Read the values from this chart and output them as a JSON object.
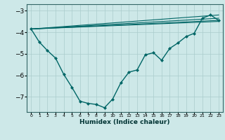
{
  "xlabel": "Humidex (Indice chaleur)",
  "background_color": "#cde8e8",
  "grid_color": "#aacccc",
  "line_color": "#006666",
  "marker_color": "#006666",
  "xlim": [
    -0.5,
    23.5
  ],
  "ylim": [
    -7.7,
    -2.7
  ],
  "yticks": [
    -7,
    -6,
    -5,
    -4,
    -3
  ],
  "xticks": [
    0,
    1,
    2,
    3,
    4,
    5,
    6,
    7,
    8,
    9,
    10,
    11,
    12,
    13,
    14,
    15,
    16,
    17,
    18,
    19,
    20,
    21,
    22,
    23
  ],
  "main_line": {
    "x": [
      0,
      1,
      2,
      3,
      4,
      5,
      6,
      7,
      8,
      9,
      10,
      11,
      12,
      13,
      14,
      15,
      16,
      17,
      18,
      19,
      20,
      21,
      22,
      23
    ],
    "y": [
      -3.85,
      -4.45,
      -4.85,
      -5.2,
      -5.95,
      -6.55,
      -7.2,
      -7.3,
      -7.35,
      -7.5,
      -7.1,
      -6.35,
      -5.85,
      -5.75,
      -5.05,
      -4.95,
      -5.3,
      -4.75,
      -4.5,
      -4.2,
      -4.05,
      -3.35,
      -3.2,
      -3.45
    ]
  },
  "straight_lines": [
    {
      "x0": 0,
      "y0": -3.85,
      "x1": 23,
      "y1": -3.45
    },
    {
      "x0": 0,
      "y0": -3.85,
      "x1": 23,
      "y1": -3.2
    },
    {
      "x0": 0,
      "y0": -3.85,
      "x1": 23,
      "y1": -3.35
    },
    {
      "x0": 0,
      "y0": -3.85,
      "x1": 23,
      "y1": -3.5
    }
  ]
}
